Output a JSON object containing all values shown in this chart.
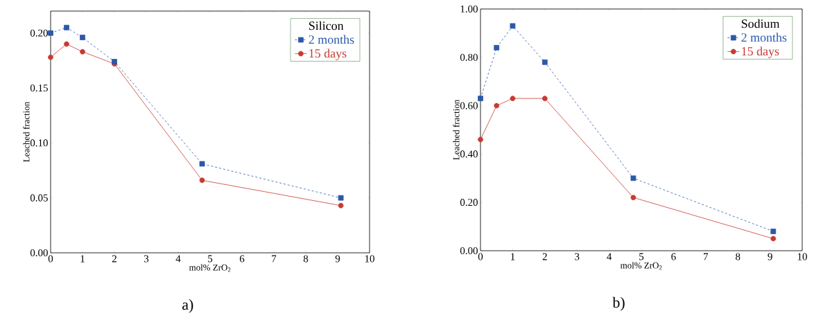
{
  "chart_data": [
    {
      "type": "line",
      "legend_title": "Silicon",
      "xlabel": "mol% ZrO$_{2}$",
      "ylabel": "Leached fraction",
      "legend": "top right",
      "xlim": [
        0,
        10
      ],
      "xticks": [
        0,
        1,
        2,
        3,
        4,
        5,
        6,
        7,
        8,
        9,
        10
      ],
      "ylim": [
        0,
        0.22
      ],
      "yticks": [
        {
          "value": 0,
          "label": "0.00"
        },
        {
          "value": 0.05,
          "label": "0.05"
        },
        {
          "value": 0.1,
          "label": "0.10"
        },
        {
          "value": 0.15,
          "label": "0.15"
        },
        {
          "value": 0.2,
          "label": "0.20"
        }
      ],
      "x": [
        0,
        0.5,
        1,
        2,
        4.75,
        9.1
      ],
      "series": [
        {
          "name": "2 months",
          "color": "#2b59a8",
          "marker": "square",
          "line_style": "dashed",
          "values": [
            0.2,
            0.205,
            0.196,
            0.174,
            0.081,
            0.05
          ]
        },
        {
          "name": "15 days",
          "color": "#c83a32",
          "marker": "circle",
          "line_style": "solid",
          "values": [
            0.178,
            0.19,
            0.183,
            0.172,
            0.066,
            0.043
          ]
        }
      ],
      "annotations": [
        "a)"
      ]
    },
    {
      "type": "line",
      "legend_title": "Sodium",
      "xlabel": "mol% ZrO$_{2}$",
      "ylabel": "Leached fraction",
      "legend": "top right",
      "xlim": [
        0,
        10
      ],
      "xticks": [
        0,
        1,
        2,
        3,
        4,
        5,
        6,
        7,
        8,
        9,
        10
      ],
      "ylim": [
        0,
        1
      ],
      "yticks": [
        {
          "value": 0,
          "label": "0.00"
        },
        {
          "value": 0.2,
          "label": "0.20"
        },
        {
          "value": 0.4,
          "label": "0.40"
        },
        {
          "value": 0.6,
          "label": "0.60"
        },
        {
          "value": 0.8,
          "label": "0.80"
        },
        {
          "value": 1,
          "label": "1.00"
        }
      ],
      "x": [
        0,
        0.5,
        1,
        2,
        4.75,
        9.1
      ],
      "series": [
        {
          "name": "2 months",
          "color": "#2b59a8",
          "marker": "square",
          "line_style": "dashed",
          "values": [
            0.63,
            0.84,
            0.93,
            0.78,
            0.3,
            0.08
          ]
        },
        {
          "name": "15 days",
          "color": "#c83a32",
          "marker": "circle",
          "line_style": "solid",
          "values": [
            0.46,
            0.6,
            0.63,
            0.63,
            0.22,
            0.05
          ]
        }
      ],
      "annotations": [
        "b)"
      ]
    }
  ]
}
